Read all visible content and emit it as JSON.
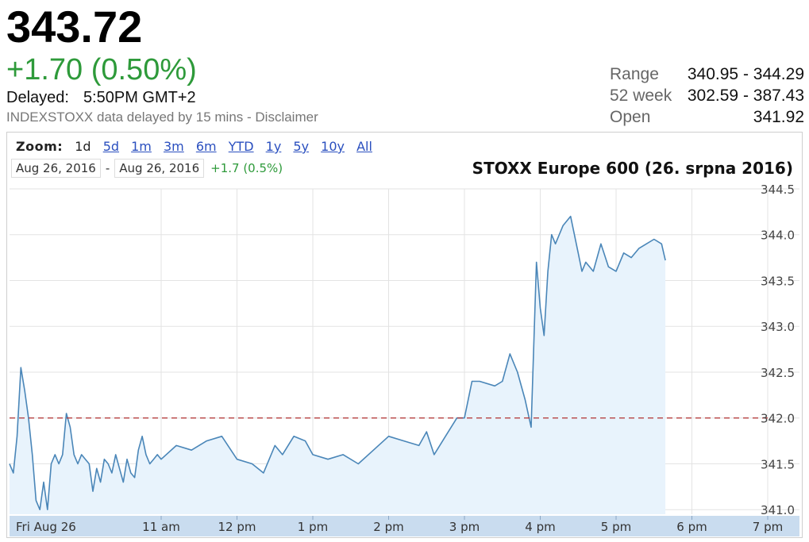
{
  "quote": {
    "price": "343.72",
    "change": "+1.70 (0.50%)",
    "delayed_label": "Delayed:",
    "delayed_time": "5:50PM GMT+2",
    "source_note": "INDEXSTOXX data delayed by 15 mins - Disclaimer"
  },
  "stats": [
    {
      "key": "Range",
      "value": "340.95 - 344.29"
    },
    {
      "key": "52 week",
      "value": "302.59 - 387.43"
    },
    {
      "key": "Open",
      "value": "341.92"
    }
  ],
  "zoom": {
    "label": "Zoom:",
    "options": [
      "1d",
      "5d",
      "1m",
      "3m",
      "6m",
      "YTD",
      "1y",
      "5y",
      "10y",
      "All"
    ],
    "active": "1d"
  },
  "date_range": {
    "from": "Aug 26, 2016",
    "separator": "-",
    "to": "Aug 26, 2016",
    "change": "+1.7 (0.5%)"
  },
  "colors": {
    "line": "#4a86b8",
    "fill": "#e8f3fc",
    "reference_line": "#b03030",
    "axis_band": "#c9dcef",
    "gain": "#2e9a3a"
  },
  "chart_data": {
    "type": "area",
    "title": "STOXX Europe 600 (26. srpna 2016)",
    "xlabel": "",
    "ylabel": "",
    "ylim": [
      340.95,
      344.5
    ],
    "xlim": [
      9.0,
      19.5
    ],
    "y_ticks": [
      341.0,
      341.5,
      342.0,
      342.5,
      343.0,
      343.5,
      344.0,
      344.5
    ],
    "x_tick_labels": [
      {
        "x": 9.0,
        "label": "Fri Aug 26"
      },
      {
        "x": 11.0,
        "label": "11 am"
      },
      {
        "x": 12.0,
        "label": "12 pm"
      },
      {
        "x": 13.0,
        "label": "1 pm"
      },
      {
        "x": 14.0,
        "label": "2 pm"
      },
      {
        "x": 15.0,
        "label": "3 pm"
      },
      {
        "x": 16.0,
        "label": "4 pm"
      },
      {
        "x": 17.0,
        "label": "5 pm"
      },
      {
        "x": 18.0,
        "label": "6 pm"
      },
      {
        "x": 19.0,
        "label": "7 pm"
      }
    ],
    "reference_line": 342.0,
    "grid": true,
    "series": [
      {
        "x": [
          9.0,
          9.05,
          9.1,
          9.15,
          9.2,
          9.25,
          9.3,
          9.35,
          9.4,
          9.45,
          9.5,
          9.55,
          9.6,
          9.65,
          9.7,
          9.75,
          9.8,
          9.85,
          9.9,
          9.95,
          10.0,
          10.05,
          10.1,
          10.15,
          10.2,
          10.25,
          10.3,
          10.35,
          10.4,
          10.45,
          10.5,
          10.55,
          10.6,
          10.65,
          10.7,
          10.75,
          10.8,
          10.85,
          10.9,
          10.95,
          11.0,
          11.2,
          11.4,
          11.6,
          11.8,
          12.0,
          12.2,
          12.35,
          12.5,
          12.6,
          12.75,
          12.9,
          13.0,
          13.2,
          13.4,
          13.6,
          13.8,
          14.0,
          14.2,
          14.4,
          14.5,
          14.6,
          14.75,
          14.9,
          15.0,
          15.1,
          15.2,
          15.4,
          15.5,
          15.6,
          15.7,
          15.8,
          15.88,
          15.95,
          16.0,
          16.05,
          16.1,
          16.15,
          16.2,
          16.3,
          16.4,
          16.5,
          16.55,
          16.6,
          16.7,
          16.8,
          16.9,
          17.0,
          17.1,
          17.2,
          17.3,
          17.4,
          17.5,
          17.6,
          17.65
        ],
        "y": [
          341.5,
          341.4,
          341.8,
          342.55,
          342.3,
          342.0,
          341.6,
          341.1,
          341.0,
          341.3,
          341.0,
          341.5,
          341.6,
          341.5,
          341.6,
          342.05,
          341.9,
          341.6,
          341.5,
          341.6,
          341.55,
          341.5,
          341.2,
          341.45,
          341.3,
          341.55,
          341.5,
          341.4,
          341.6,
          341.45,
          341.3,
          341.55,
          341.4,
          341.35,
          341.65,
          341.8,
          341.6,
          341.5,
          341.55,
          341.6,
          341.55,
          341.7,
          341.65,
          341.75,
          341.8,
          341.55,
          341.5,
          341.4,
          341.7,
          341.6,
          341.8,
          341.75,
          341.6,
          341.55,
          341.6,
          341.5,
          341.65,
          341.8,
          341.75,
          341.7,
          341.85,
          341.6,
          341.8,
          342.0,
          342.0,
          342.4,
          342.4,
          342.35,
          342.4,
          342.7,
          342.5,
          342.2,
          341.9,
          343.7,
          343.2,
          342.9,
          343.6,
          344.0,
          343.9,
          344.1,
          344.2,
          343.8,
          343.6,
          343.7,
          343.6,
          343.9,
          343.65,
          343.6,
          343.8,
          343.75,
          343.85,
          343.9,
          343.95,
          343.9,
          343.72
        ]
      }
    ]
  }
}
